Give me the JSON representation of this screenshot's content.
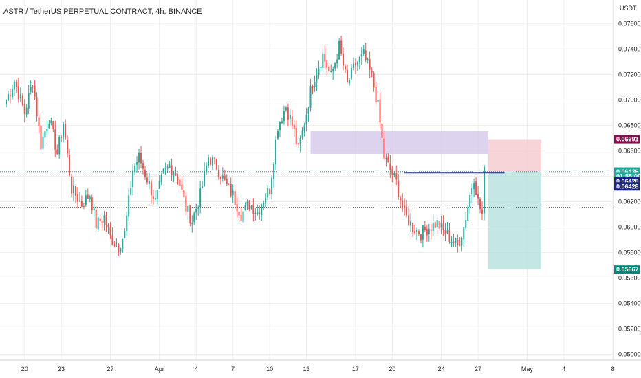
{
  "header": {
    "title": "ASTR / TetherUS PERPETUAL CONTRACT, 4h, BINANCE",
    "currency": "USDT"
  },
  "colors": {
    "up": "#26a69a",
    "down": "#ef5350",
    "grid": "#eeeeee",
    "dotted_line": "#3a8fa3",
    "target_zone": "#b2dfdb",
    "stop_zone": "#f3c6cb",
    "supply_zone": "#d1c4e9",
    "entry_line": "#1a237e"
  },
  "chart_data": {
    "type": "candlestick",
    "title": "ASTR / TetherUS PERPETUAL CONTRACT, 4h, BINANCE",
    "ylabel": "USDT",
    "ylim": [
      0.04955,
      0.07785
    ],
    "y_ticks": [
      "0.07600",
      "0.07400",
      "0.07200",
      "0.07000",
      "0.06800",
      "0.06600",
      "0.06400",
      "0.06200",
      "0.06000",
      "0.05800",
      "0.05600",
      "0.05400",
      "0.05200",
      "0.05000"
    ],
    "x_ticks": [
      "20",
      "23",
      "27",
      "Apr",
      "4",
      "7",
      "10",
      "13",
      "17",
      "20",
      "24",
      "27",
      "May",
      "4",
      "8"
    ],
    "x_tick_index": [
      9,
      27,
      51,
      75,
      93,
      111,
      129,
      147,
      171,
      189,
      213,
      231,
      255,
      273,
      297
    ],
    "candle_count": 235,
    "last_candle_index": 234,
    "waypoints": [
      [
        0,
        0.07
      ],
      [
        4,
        0.0715
      ],
      [
        9,
        0.069
      ],
      [
        13,
        0.0715
      ],
      [
        17,
        0.0665
      ],
      [
        21,
        0.0686
      ],
      [
        25,
        0.0658
      ],
      [
        28,
        0.0682
      ],
      [
        32,
        0.063
      ],
      [
        37,
        0.0618
      ],
      [
        41,
        0.0626
      ],
      [
        44,
        0.0602
      ],
      [
        48,
        0.0608
      ],
      [
        51,
        0.0592
      ],
      [
        55,
        0.0585
      ],
      [
        58,
        0.0595
      ],
      [
        62,
        0.0645
      ],
      [
        65,
        0.0655
      ],
      [
        69,
        0.0638
      ],
      [
        73,
        0.062
      ],
      [
        77,
        0.0642
      ],
      [
        80,
        0.0648
      ],
      [
        84,
        0.064
      ],
      [
        88,
        0.0615
      ],
      [
        91,
        0.0605
      ],
      [
        95,
        0.0625
      ],
      [
        99,
        0.0655
      ],
      [
        103,
        0.0648
      ],
      [
        107,
        0.0635
      ],
      [
        111,
        0.0625
      ],
      [
        115,
        0.061
      ],
      [
        119,
        0.0618
      ],
      [
        123,
        0.0612
      ],
      [
        127,
        0.0625
      ],
      [
        129,
        0.063
      ],
      [
        133,
        0.068
      ],
      [
        137,
        0.0695
      ],
      [
        141,
        0.0675
      ],
      [
        143,
        0.066
      ],
      [
        147,
        0.069
      ],
      [
        150,
        0.0715
      ],
      [
        155,
        0.0735
      ],
      [
        159,
        0.0718
      ],
      [
        163,
        0.0742
      ],
      [
        167,
        0.0712
      ],
      [
        171,
        0.0728
      ],
      [
        175,
        0.0735
      ],
      [
        179,
        0.0718
      ],
      [
        182,
        0.0695
      ],
      [
        185,
        0.0655
      ],
      [
        187,
        0.0648
      ],
      [
        191,
        0.0635
      ],
      [
        195,
        0.061
      ],
      [
        199,
        0.06
      ],
      [
        203,
        0.0595
      ],
      [
        207,
        0.06
      ],
      [
        211,
        0.0603
      ],
      [
        214,
        0.0597
      ],
      [
        217,
        0.0592
      ],
      [
        221,
        0.0585
      ],
      [
        224,
        0.06
      ],
      [
        227,
        0.0625
      ],
      [
        229,
        0.064
      ],
      [
        231,
        0.062
      ],
      [
        233,
        0.061
      ],
      [
        234,
        0.0643
      ]
    ],
    "price_tags": [
      {
        "label": "0.06691",
        "value": 0.06691,
        "color": "#880e4f"
      },
      {
        "label": "0.06439",
        "value": 0.06439,
        "color": "#c8c8c8",
        "text_color": "#222222"
      },
      {
        "label": "0.06436",
        "value": 0.06436,
        "color": "#26a69a"
      },
      {
        "label": "01:55:00",
        "value": 0.064,
        "color": "#26a69a"
      },
      {
        "label": "0.06428",
        "value": 0.0636,
        "color": "#1a237e"
      },
      {
        "label": "0.06428",
        "value": 0.0632,
        "color": "#1a237e"
      },
      {
        "label": "0.05667",
        "value": 0.05667,
        "color": "#00897b"
      }
    ],
    "horizontal_lines": [
      {
        "value": 0.06436,
        "style": "dotted"
      },
      {
        "value": 0.06155,
        "style": "dotted"
      }
    ],
    "zones": [
      {
        "name": "supply",
        "x0": 149,
        "x1": 236,
        "y0": 0.06755,
        "y1": 0.06575
      },
      {
        "name": "stop",
        "x0": 236,
        "x1": 262,
        "y0": 0.06691,
        "y1": 0.06436
      },
      {
        "name": "target",
        "x0": 236,
        "x1": 262,
        "y0": 0.06436,
        "y1": 0.05667
      }
    ],
    "entry_line": {
      "x0": 195,
      "x1": 244,
      "value": 0.06428
    }
  }
}
